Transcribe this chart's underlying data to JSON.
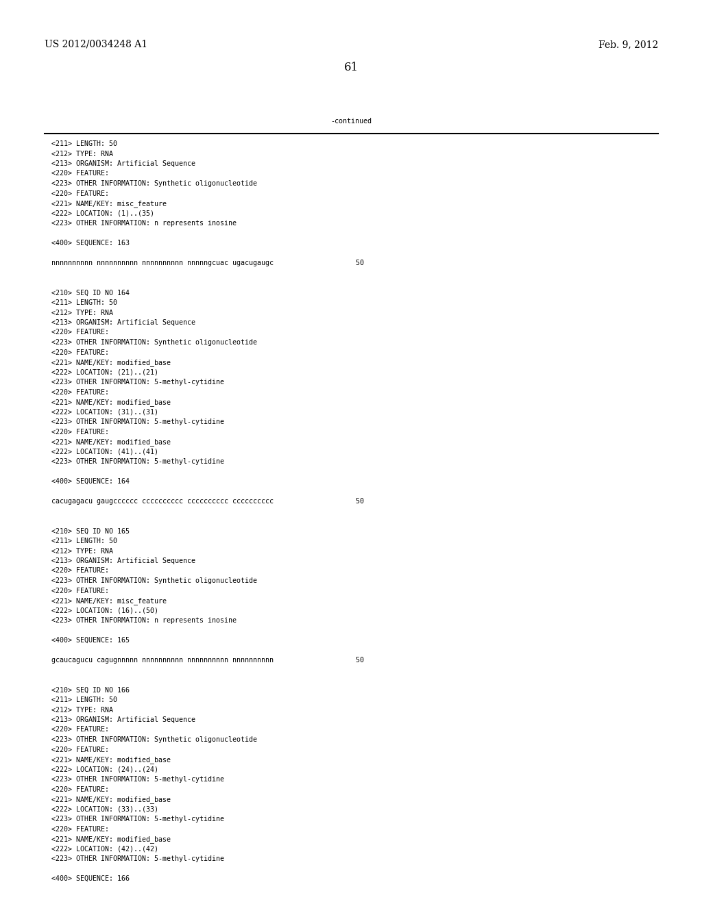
{
  "header_left": "US 2012/0034248 A1",
  "header_right": "Feb. 9, 2012",
  "page_number": "61",
  "continued_label": "-continued",
  "background_color": "#ffffff",
  "text_color": "#000000",
  "font_size_header": 10,
  "font_size_body": 7.2,
  "font_size_page": 12,
  "content_lines": [
    "<211> LENGTH: 50",
    "<212> TYPE: RNA",
    "<213> ORGANISM: Artificial Sequence",
    "<220> FEATURE:",
    "<223> OTHER INFORMATION: Synthetic oligonucleotide",
    "<220> FEATURE:",
    "<221> NAME/KEY: misc_feature",
    "<222> LOCATION: (1)..(35)",
    "<223> OTHER INFORMATION: n represents inosine",
    "",
    "<400> SEQUENCE: 163",
    "",
    "nnnnnnnnnn nnnnnnnnnn nnnnnnnnnn nnnnngcuac ugacugaugc                    50",
    "",
    "",
    "<210> SEQ ID NO 164",
    "<211> LENGTH: 50",
    "<212> TYPE: RNA",
    "<213> ORGANISM: Artificial Sequence",
    "<220> FEATURE:",
    "<223> OTHER INFORMATION: Synthetic oligonucleotide",
    "<220> FEATURE:",
    "<221> NAME/KEY: modified_base",
    "<222> LOCATION: (21)..(21)",
    "<223> OTHER INFORMATION: 5-methyl-cytidine",
    "<220> FEATURE:",
    "<221> NAME/KEY: modified_base",
    "<222> LOCATION: (31)..(31)",
    "<223> OTHER INFORMATION: 5-methyl-cytidine",
    "<220> FEATURE:",
    "<221> NAME/KEY: modified_base",
    "<222> LOCATION: (41)..(41)",
    "<223> OTHER INFORMATION: 5-methyl-cytidine",
    "",
    "<400> SEQUENCE: 164",
    "",
    "cacugagacu gaugcccccc cccccccccc cccccccccc cccccccccc                    50",
    "",
    "",
    "<210> SEQ ID NO 165",
    "<211> LENGTH: 50",
    "<212> TYPE: RNA",
    "<213> ORGANISM: Artificial Sequence",
    "<220> FEATURE:",
    "<223> OTHER INFORMATION: Synthetic oligonucleotide",
    "<220> FEATURE:",
    "<221> NAME/KEY: misc_feature",
    "<222> LOCATION: (16)..(50)",
    "<223> OTHER INFORMATION: n represents inosine",
    "",
    "<400> SEQUENCE: 165",
    "",
    "gcaucagucu cagugnnnnn nnnnnnnnnn nnnnnnnnnn nnnnnnnnnn                    50",
    "",
    "",
    "<210> SEQ ID NO 166",
    "<211> LENGTH: 50",
    "<212> TYPE: RNA",
    "<213> ORGANISM: Artificial Sequence",
    "<220> FEATURE:",
    "<223> OTHER INFORMATION: Synthetic oligonucleotide",
    "<220> FEATURE:",
    "<221> NAME/KEY: modified_base",
    "<222> LOCATION: (24)..(24)",
    "<223> OTHER INFORMATION: 5-methyl-cytidine",
    "<220> FEATURE:",
    "<221> NAME/KEY: modified_base",
    "<222> LOCATION: (33)..(33)",
    "<223> OTHER INFORMATION: 5-methyl-cytidine",
    "<220> FEATURE:",
    "<221> NAME/KEY: modified_base",
    "<222> LOCATION: (42)..(42)",
    "<223> OTHER INFORMATION: 5-methyl-cytidine",
    "",
    "<400> SEQUENCE: 166"
  ]
}
